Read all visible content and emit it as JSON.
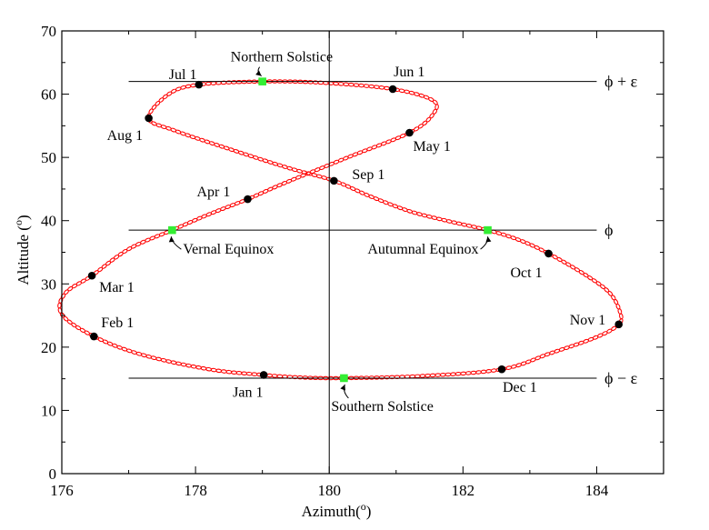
{
  "chart_data": {
    "type": "scatter",
    "title": "",
    "xlabel": "Azimuth(",
    "xlabel_sup": "o",
    "xlabel_end": ")",
    "ylabel": "Altitude (",
    "ylabel_sup": "o",
    "ylabel_end": ")",
    "xlim": [
      176,
      185
    ],
    "ylim": [
      0,
      70
    ],
    "xticks": [
      176,
      178,
      180,
      182,
      184
    ],
    "yticks": [
      0,
      10,
      20,
      30,
      40,
      50,
      60,
      70
    ],
    "xtick_labels": [
      "176",
      "178",
      "180",
      "182",
      "184"
    ],
    "ytick_labels": [
      "0",
      "10",
      "20",
      "30",
      "40",
      "50",
      "60",
      "70"
    ],
    "grid": false,
    "colors": {
      "analemma": "#ff0000",
      "month_marker": "#000000",
      "season_marker": "#33ee33",
      "lines": "#000000"
    },
    "reference_lines": [
      {
        "label": "ϕ + ε",
        "y": 62.0,
        "x_range": [
          177.0,
          184.0
        ]
      },
      {
        "label": "ϕ",
        "y": 38.5,
        "x_range": [
          177.0,
          184.0
        ]
      },
      {
        "label": "ϕ − ε",
        "y": 15.1,
        "x_range": [
          177.0,
          184.0
        ]
      }
    ],
    "vertical_line": {
      "x": 180.0
    },
    "analemma_keypoints": [
      [
        180.07,
        46.3
      ],
      [
        180.6,
        43.9
      ],
      [
        181.2,
        41.5
      ],
      [
        181.75,
        40.0
      ],
      [
        182.37,
        38.5
      ],
      [
        182.85,
        36.9
      ],
      [
        183.28,
        34.8
      ],
      [
        183.85,
        31.3
      ],
      [
        184.2,
        28.5
      ],
      [
        184.35,
        25.5
      ],
      [
        184.33,
        23.6
      ],
      [
        184.0,
        21.6
      ],
      [
        183.3,
        19.0
      ],
      [
        182.58,
        16.5
      ],
      [
        181.4,
        15.45
      ],
      [
        180.22,
        15.1
      ],
      [
        179.6,
        15.2
      ],
      [
        179.02,
        15.6
      ],
      [
        178.2,
        16.5
      ],
      [
        177.2,
        18.8
      ],
      [
        176.48,
        21.7
      ],
      [
        176.0,
        25.2
      ],
      [
        176.05,
        28.5
      ],
      [
        176.45,
        31.3
      ],
      [
        177.0,
        35.5
      ],
      [
        177.65,
        38.5
      ],
      [
        178.2,
        41.0
      ],
      [
        178.78,
        43.4
      ],
      [
        179.3,
        45.8
      ],
      [
        180.3,
        50.1
      ],
      [
        181.2,
        53.9
      ],
      [
        181.55,
        56.8
      ],
      [
        181.55,
        59.0
      ],
      [
        180.95,
        60.8
      ],
      [
        179.9,
        61.8
      ],
      [
        179.0,
        62.0
      ],
      [
        178.05,
        61.5
      ],
      [
        177.6,
        60.0
      ],
      [
        177.3,
        56.2
      ],
      [
        177.7,
        54.2
      ],
      [
        178.6,
        51.0
      ],
      [
        179.4,
        48.3
      ],
      [
        180.07,
        46.3
      ]
    ],
    "months": [
      {
        "label": "Jan 1",
        "x": 179.02,
        "y": 15.6
      },
      {
        "label": "Feb 1",
        "x": 176.48,
        "y": 21.7
      },
      {
        "label": "Mar 1",
        "x": 176.45,
        "y": 31.3
      },
      {
        "label": "Apr 1",
        "x": 178.78,
        "y": 43.4
      },
      {
        "label": "May 1",
        "x": 181.2,
        "y": 53.9
      },
      {
        "label": "Jun 1",
        "x": 180.95,
        "y": 60.8
      },
      {
        "label": "Jul 1",
        "x": 178.05,
        "y": 61.5
      },
      {
        "label": "Aug 1",
        "x": 177.3,
        "y": 56.2
      },
      {
        "label": "Sep 1",
        "x": 180.07,
        "y": 46.3
      },
      {
        "label": "Oct 1",
        "x": 183.28,
        "y": 34.8
      },
      {
        "label": "Nov 1",
        "x": 184.33,
        "y": 23.6
      },
      {
        "label": "Dec 1",
        "x": 182.58,
        "y": 16.5
      }
    ],
    "events": [
      {
        "label": "Northern Solstice",
        "x": 179.0,
        "y": 62.0
      },
      {
        "label": "Vernal Equinox",
        "x": 177.65,
        "y": 38.5
      },
      {
        "label": "Autumnal Equinox",
        "x": 182.37,
        "y": 38.5
      },
      {
        "label": "Southern Solstice",
        "x": 180.22,
        "y": 15.1
      }
    ]
  }
}
